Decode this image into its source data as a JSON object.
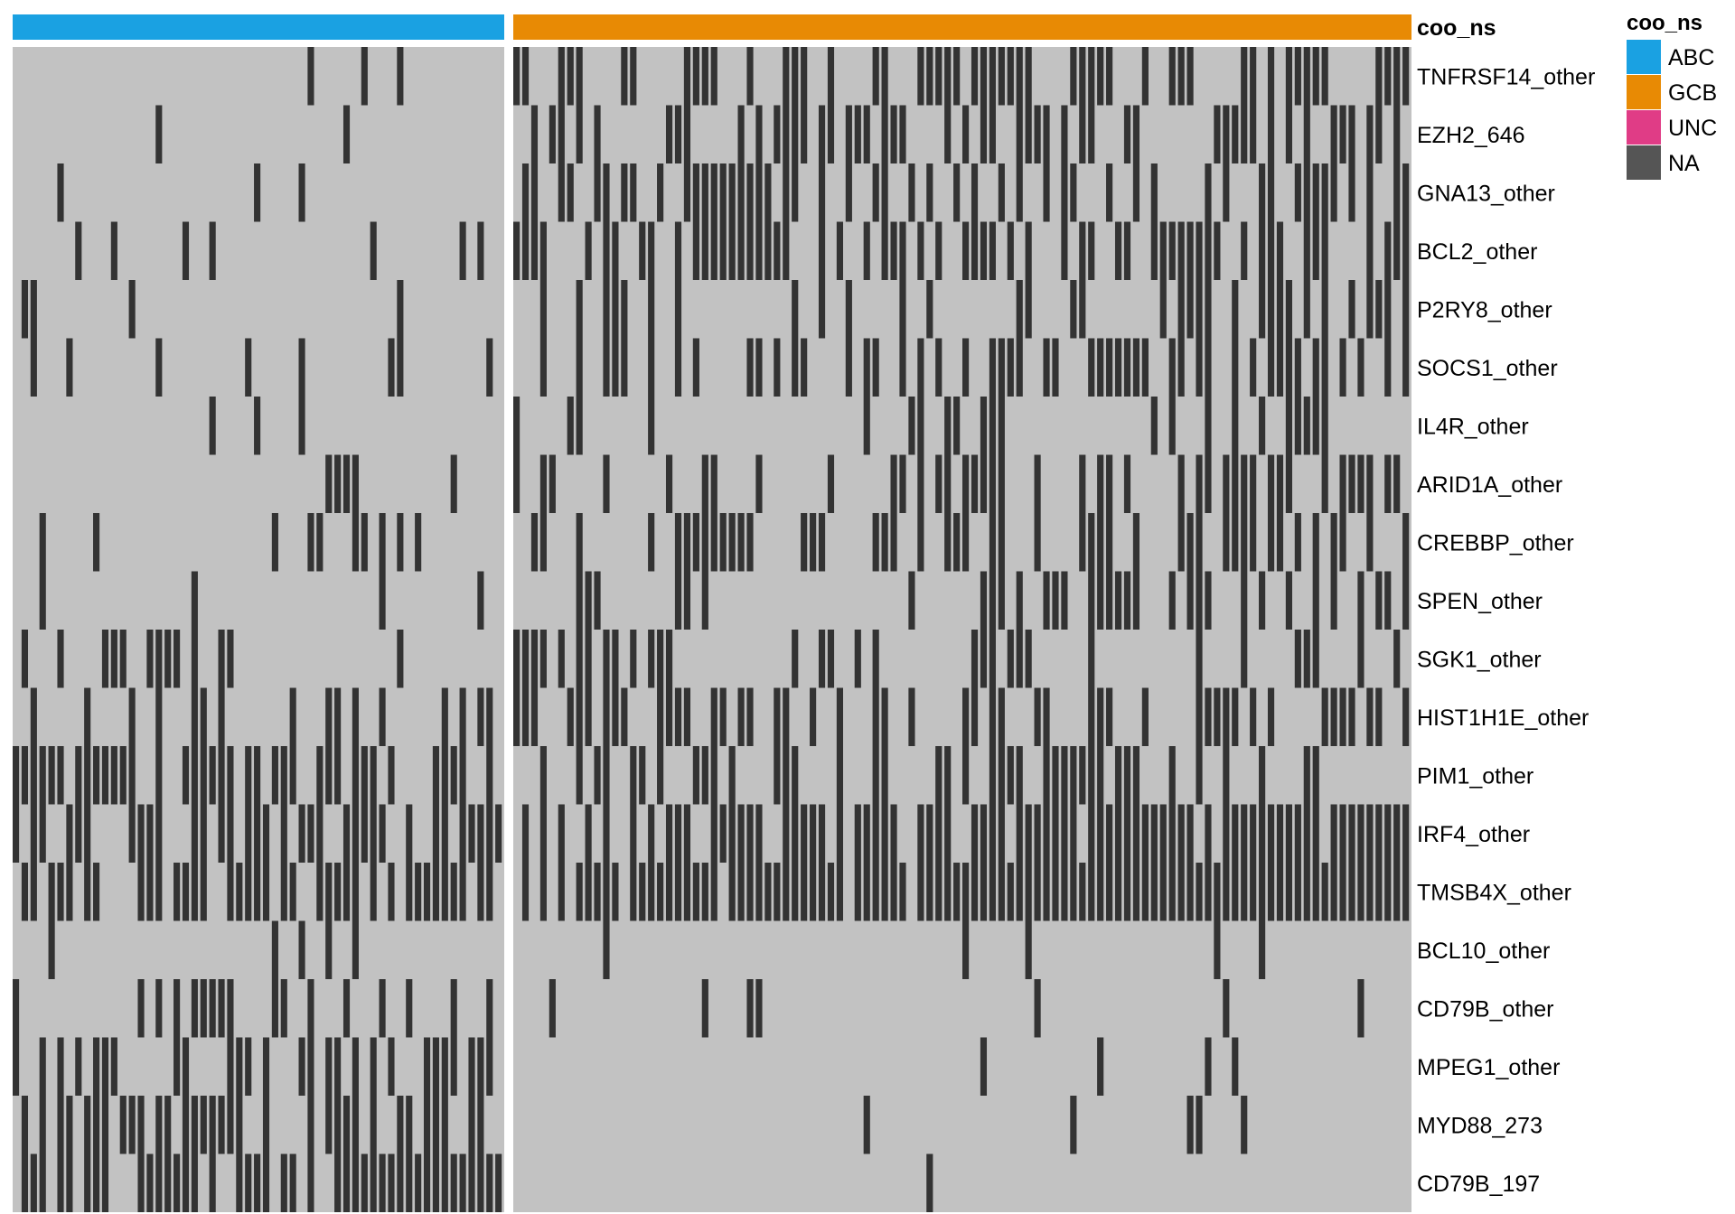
{
  "chart_data": {
    "type": "heatmap",
    "annotation": {
      "name": "coo_ns",
      "groups": [
        {
          "label": "ABC",
          "count": 55
        },
        {
          "label": "GCB",
          "count": 100
        }
      ]
    },
    "legend": {
      "title": "coo_ns",
      "placement": "top-right",
      "entries": [
        {
          "label": "ABC",
          "color": "#1AA1E2"
        },
        {
          "label": "GCB",
          "color": "#E88A04"
        },
        {
          "label": "UNC",
          "color": "#E03C86"
        },
        {
          "label": "NA",
          "color": "#555555"
        }
      ]
    },
    "colors": {
      "mutated": "#333333",
      "wildtype": "#C2C2C2"
    },
    "rows": [
      {
        "gene": "TNFRSF14_other",
        "abc": [
          33,
          39,
          43
        ],
        "gcb": [
          0,
          1,
          5,
          6,
          7,
          12,
          13,
          19,
          20,
          21,
          22,
          26,
          30,
          31,
          32,
          35,
          40,
          41,
          45,
          46,
          47,
          48,
          49,
          51,
          52,
          53,
          54,
          55,
          56,
          57,
          62,
          63,
          64,
          65,
          66,
          70,
          73,
          74,
          75,
          81,
          82,
          84,
          86,
          87,
          88,
          89,
          90,
          96,
          97,
          98,
          99
        ]
      },
      {
        "gene": "EZH2_646",
        "abc": [
          16,
          37
        ],
        "gcb": [
          2,
          4,
          5,
          7,
          9,
          17,
          18,
          19,
          25,
          27,
          29,
          30,
          31,
          32,
          34,
          35,
          37,
          38,
          39,
          41,
          42,
          43,
          48,
          50,
          52,
          53,
          56,
          57,
          58,
          59,
          61,
          63,
          64,
          68,
          69,
          78,
          79,
          80,
          81,
          82,
          84,
          86,
          88,
          91,
          92,
          93,
          95,
          96,
          98
        ]
      },
      {
        "gene": "GNA13_other",
        "abc": [
          5,
          27,
          32
        ],
        "gcb": [
          1,
          2,
          5,
          6,
          9,
          10,
          12,
          13,
          16,
          19,
          20,
          21,
          22,
          23,
          24,
          25,
          26,
          27,
          28,
          30,
          31,
          34,
          37,
          40,
          41,
          44,
          46,
          49,
          51,
          54,
          56,
          59,
          61,
          62,
          66,
          69,
          71,
          77,
          79,
          83,
          84,
          87,
          88,
          89,
          90,
          91,
          93,
          95,
          98,
          99
        ]
      },
      {
        "gene": "BCL2_other",
        "abc": [
          7,
          11,
          19,
          22,
          40,
          50,
          52
        ],
        "gcb": [
          0,
          1,
          2,
          3,
          8,
          10,
          11,
          14,
          15,
          18,
          20,
          21,
          22,
          23,
          24,
          25,
          26,
          27,
          28,
          29,
          30,
          34,
          36,
          39,
          41,
          42,
          43,
          45,
          47,
          50,
          51,
          52,
          53,
          55,
          57,
          61,
          63,
          64,
          67,
          68,
          71,
          72,
          73,
          74,
          75,
          76,
          77,
          78,
          81,
          83,
          84,
          85,
          88,
          89,
          90,
          95,
          97,
          98,
          99
        ]
      },
      {
        "gene": "P2RY8_other",
        "abc": [
          1,
          2,
          13,
          43
        ],
        "gcb": [
          3,
          7,
          10,
          11,
          12,
          15,
          18,
          31,
          34,
          37,
          43,
          46,
          56,
          57,
          62,
          63,
          72,
          74,
          75,
          76,
          77,
          80,
          83,
          84,
          85,
          86,
          88,
          90,
          93,
          95,
          96,
          97,
          99
        ]
      },
      {
        "gene": "SOCS1_other",
        "abc": [
          2,
          6,
          16,
          26,
          32,
          42,
          43,
          53
        ],
        "gcb": [
          3,
          7,
          10,
          11,
          12,
          15,
          18,
          20,
          26,
          27,
          29,
          31,
          32,
          37,
          39,
          40,
          43,
          45,
          47,
          50,
          53,
          54,
          55,
          56,
          59,
          60,
          64,
          65,
          66,
          67,
          68,
          69,
          70,
          73,
          74,
          76,
          77,
          80,
          82,
          84,
          85,
          86,
          87,
          89,
          90,
          92,
          94,
          97,
          99
        ]
      },
      {
        "gene": "IL4R_other",
        "abc": [
          22,
          27,
          32
        ],
        "gcb": [
          0,
          6,
          7,
          15,
          39,
          44,
          45,
          48,
          49,
          52,
          53,
          54,
          71,
          73,
          77,
          80,
          83,
          86,
          87,
          88,
          89,
          90
        ]
      },
      {
        "gene": "ARID1A_other",
        "abc": [
          35,
          36,
          37,
          38,
          49
        ],
        "gcb": [
          0,
          3,
          4,
          10,
          17,
          21,
          22,
          27,
          35,
          42,
          43,
          45,
          47,
          48,
          50,
          51,
          52,
          53,
          54,
          58,
          63,
          65,
          66,
          68,
          74,
          76,
          77,
          79,
          80,
          81,
          82,
          84,
          85,
          86,
          90,
          92,
          93,
          94,
          95,
          97,
          98
        ]
      },
      {
        "gene": "CREBBP_other",
        "abc": [
          3,
          9,
          29,
          33,
          34,
          38,
          39,
          41,
          43,
          45
        ],
        "gcb": [
          2,
          3,
          7,
          15,
          18,
          19,
          20,
          21,
          22,
          23,
          24,
          25,
          26,
          32,
          33,
          34,
          40,
          41,
          42,
          45,
          48,
          49,
          50,
          53,
          54,
          58,
          63,
          64,
          65,
          66,
          69,
          74,
          75,
          76,
          79,
          80,
          81,
          82,
          84,
          85,
          87,
          89,
          91,
          92,
          95,
          99
        ]
      },
      {
        "gene": "SPEN_other",
        "abc": [
          3,
          20,
          41,
          52
        ],
        "gcb": [
          7,
          8,
          9,
          18,
          19,
          21,
          44,
          52,
          53,
          54,
          56,
          59,
          60,
          61,
          64,
          65,
          66,
          67,
          68,
          69,
          73,
          75,
          76,
          77,
          81,
          83,
          86,
          89,
          91,
          94,
          96,
          97,
          99
        ]
      },
      {
        "gene": "SGK1_other",
        "abc": [
          1,
          5,
          10,
          11,
          12,
          15,
          16,
          17,
          18,
          20,
          23,
          24,
          43
        ],
        "gcb": [
          0,
          1,
          2,
          3,
          5,
          7,
          8,
          10,
          11,
          13,
          15,
          16,
          17,
          31,
          34,
          35,
          38,
          40,
          51,
          52,
          53,
          55,
          56,
          57,
          64,
          76,
          81,
          87,
          88,
          89,
          94,
          98
        ]
      },
      {
        "gene": "HIST1H1E_other",
        "abc": [
          2,
          8,
          13,
          16,
          20,
          21,
          23,
          31,
          35,
          36,
          38,
          41,
          48,
          50,
          52,
          53
        ],
        "gcb": [
          0,
          1,
          2,
          6,
          7,
          8,
          10,
          11,
          12,
          16,
          17,
          18,
          19,
          22,
          23,
          25,
          26,
          29,
          30,
          33,
          36,
          40,
          41,
          44,
          50,
          51,
          53,
          54,
          58,
          59,
          64,
          65,
          66,
          70,
          76,
          77,
          78,
          79,
          80,
          82,
          84,
          90,
          91,
          92,
          93,
          95,
          96,
          99
        ]
      },
      {
        "gene": "PIM1_other",
        "abc": [
          0,
          1,
          2,
          3,
          4,
          5,
          7,
          8,
          9,
          10,
          11,
          12,
          13,
          16,
          19,
          20,
          21,
          22,
          23,
          24,
          26,
          27,
          29,
          30,
          31,
          34,
          35,
          36,
          38,
          39,
          40,
          42,
          47,
          48,
          49,
          50,
          53
        ],
        "gcb": [
          3,
          7,
          9,
          10,
          13,
          14,
          16,
          20,
          21,
          22,
          24,
          29,
          30,
          31,
          36,
          40,
          41,
          47,
          48,
          50,
          53,
          54,
          55,
          56,
          59,
          60,
          61,
          62,
          63,
          64,
          65,
          67,
          68,
          69,
          73,
          76,
          79,
          83,
          88,
          89
        ]
      },
      {
        "gene": "IRF4_other",
        "abc": [
          0,
          2,
          3,
          6,
          7,
          8,
          13,
          14,
          15,
          16,
          20,
          21,
          23,
          24,
          26,
          27,
          28,
          30,
          32,
          33,
          34,
          37,
          38,
          39,
          40,
          41,
          44,
          47,
          48,
          50,
          51,
          52,
          53,
          54
        ],
        "gcb": [
          1,
          3,
          5,
          8,
          10,
          13,
          15,
          17,
          18,
          19,
          22,
          23,
          24,
          25,
          26,
          27,
          30,
          31,
          32,
          33,
          34,
          36,
          38,
          39,
          40,
          41,
          42,
          45,
          46,
          47,
          48,
          51,
          52,
          53,
          54,
          56,
          57,
          58,
          59,
          60,
          61,
          62,
          64,
          65,
          66,
          67,
          68,
          69,
          70,
          71,
          72,
          73,
          74,
          75,
          77,
          79,
          80,
          81,
          82,
          83,
          84,
          85,
          86,
          87,
          88,
          89,
          91,
          92,
          93,
          94,
          95,
          96,
          97,
          98,
          99
        ]
      },
      {
        "gene": "TMSB4X_other",
        "abc": [
          1,
          2,
          4,
          5,
          6,
          8,
          9,
          14,
          15,
          16,
          18,
          19,
          20,
          21,
          24,
          25,
          26,
          27,
          28,
          30,
          31,
          34,
          35,
          36,
          37,
          38,
          40,
          42,
          44,
          45,
          46,
          47,
          48,
          49,
          50,
          52,
          53
        ],
        "gcb": [
          1,
          3,
          5,
          7,
          8,
          9,
          10,
          11,
          13,
          14,
          15,
          16,
          17,
          18,
          19,
          20,
          21,
          22,
          24,
          25,
          26,
          27,
          28,
          29,
          30,
          31,
          32,
          33,
          34,
          35,
          36,
          38,
          39,
          40,
          41,
          42,
          43,
          45,
          46,
          47,
          48,
          49,
          50,
          51,
          52,
          53,
          54,
          55,
          56,
          57,
          58,
          59,
          60,
          61,
          62,
          63,
          64,
          65,
          66,
          67,
          68,
          69,
          70,
          71,
          72,
          73,
          74,
          75,
          76,
          77,
          78,
          79,
          80,
          81,
          82,
          83,
          84,
          85,
          86,
          87,
          88,
          89,
          90,
          91,
          92,
          93,
          94,
          95,
          96,
          97,
          98,
          99
        ]
      },
      {
        "gene": "BCL10_other",
        "abc": [
          4,
          29,
          32,
          35,
          38
        ],
        "gcb": [
          10,
          50,
          57,
          78,
          83
        ]
      },
      {
        "gene": "CD79B_other",
        "abc": [
          0,
          14,
          16,
          18,
          20,
          21,
          22,
          23,
          24,
          29,
          30,
          33,
          37,
          41,
          44,
          49,
          53
        ],
        "gcb": [
          4,
          21,
          26,
          27,
          58,
          79,
          94
        ]
      },
      {
        "gene": "MPEG1_other",
        "abc": [
          0,
          3,
          5,
          7,
          9,
          10,
          11,
          18,
          19,
          24,
          25,
          26,
          28,
          32,
          33,
          35,
          36,
          38,
          40,
          42,
          46,
          47,
          48,
          49,
          51,
          52,
          53
        ],
        "gcb": [
          52,
          65,
          77,
          80
        ]
      },
      {
        "gene": "MYD88_273",
        "abc": [
          1,
          3,
          5,
          6,
          8,
          9,
          10,
          12,
          13,
          14,
          16,
          17,
          19,
          20,
          21,
          22,
          23,
          24,
          25,
          28,
          33,
          35,
          36,
          37,
          38,
          40,
          43,
          44,
          46,
          47,
          48,
          51,
          52
        ],
        "gcb": [
          39,
          62,
          75,
          76,
          81
        ]
      },
      {
        "gene": "CD79B_197",
        "abc": [
          1,
          2,
          3,
          5,
          6,
          8,
          9,
          10,
          14,
          15,
          16,
          17,
          18,
          19,
          20,
          22,
          25,
          26,
          27,
          28,
          30,
          31,
          33,
          36,
          37,
          38,
          39,
          40,
          41,
          42,
          43,
          44,
          45,
          46,
          47,
          48,
          49,
          50,
          51,
          52,
          53,
          54
        ],
        "gcb": [
          46
        ]
      }
    ]
  }
}
